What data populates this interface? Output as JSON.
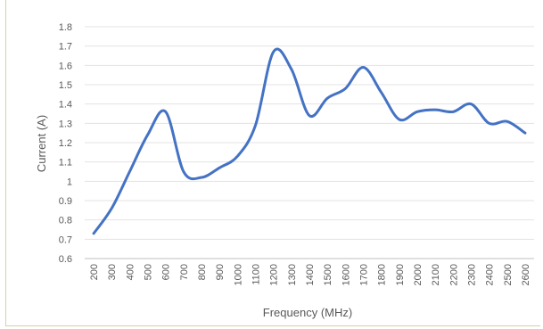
{
  "chart_data": {
    "type": "line",
    "title": "",
    "xlabel": "Frequency (MHz)",
    "ylabel": "Current (A)",
    "ylim": [
      0.6,
      1.8
    ],
    "y_ticks": [
      "0.6",
      "0.7",
      "0.8",
      "0.9",
      "1",
      "1.1",
      "1.2",
      "1.3",
      "1.4",
      "1.5",
      "1.6",
      "1.7",
      "1.8"
    ],
    "categories": [
      "200",
      "300",
      "400",
      "500",
      "600",
      "700",
      "800",
      "900",
      "1000",
      "1100",
      "1200",
      "1300",
      "1400",
      "1500",
      "1600",
      "1700",
      "1800",
      "1900",
      "2000",
      "2100",
      "2200",
      "2300",
      "2400",
      "2500",
      "2600"
    ],
    "series": [
      {
        "values": [
          0.73,
          0.86,
          1.05,
          1.24,
          1.36,
          1.05,
          1.02,
          1.07,
          1.13,
          1.29,
          1.67,
          1.58,
          1.34,
          1.43,
          1.48,
          1.59,
          1.46,
          1.32,
          1.36,
          1.37,
          1.36,
          1.4,
          1.3,
          1.31,
          1.25
        ],
        "color": "#4472c4"
      }
    ],
    "grid": true,
    "legend": "none"
  }
}
